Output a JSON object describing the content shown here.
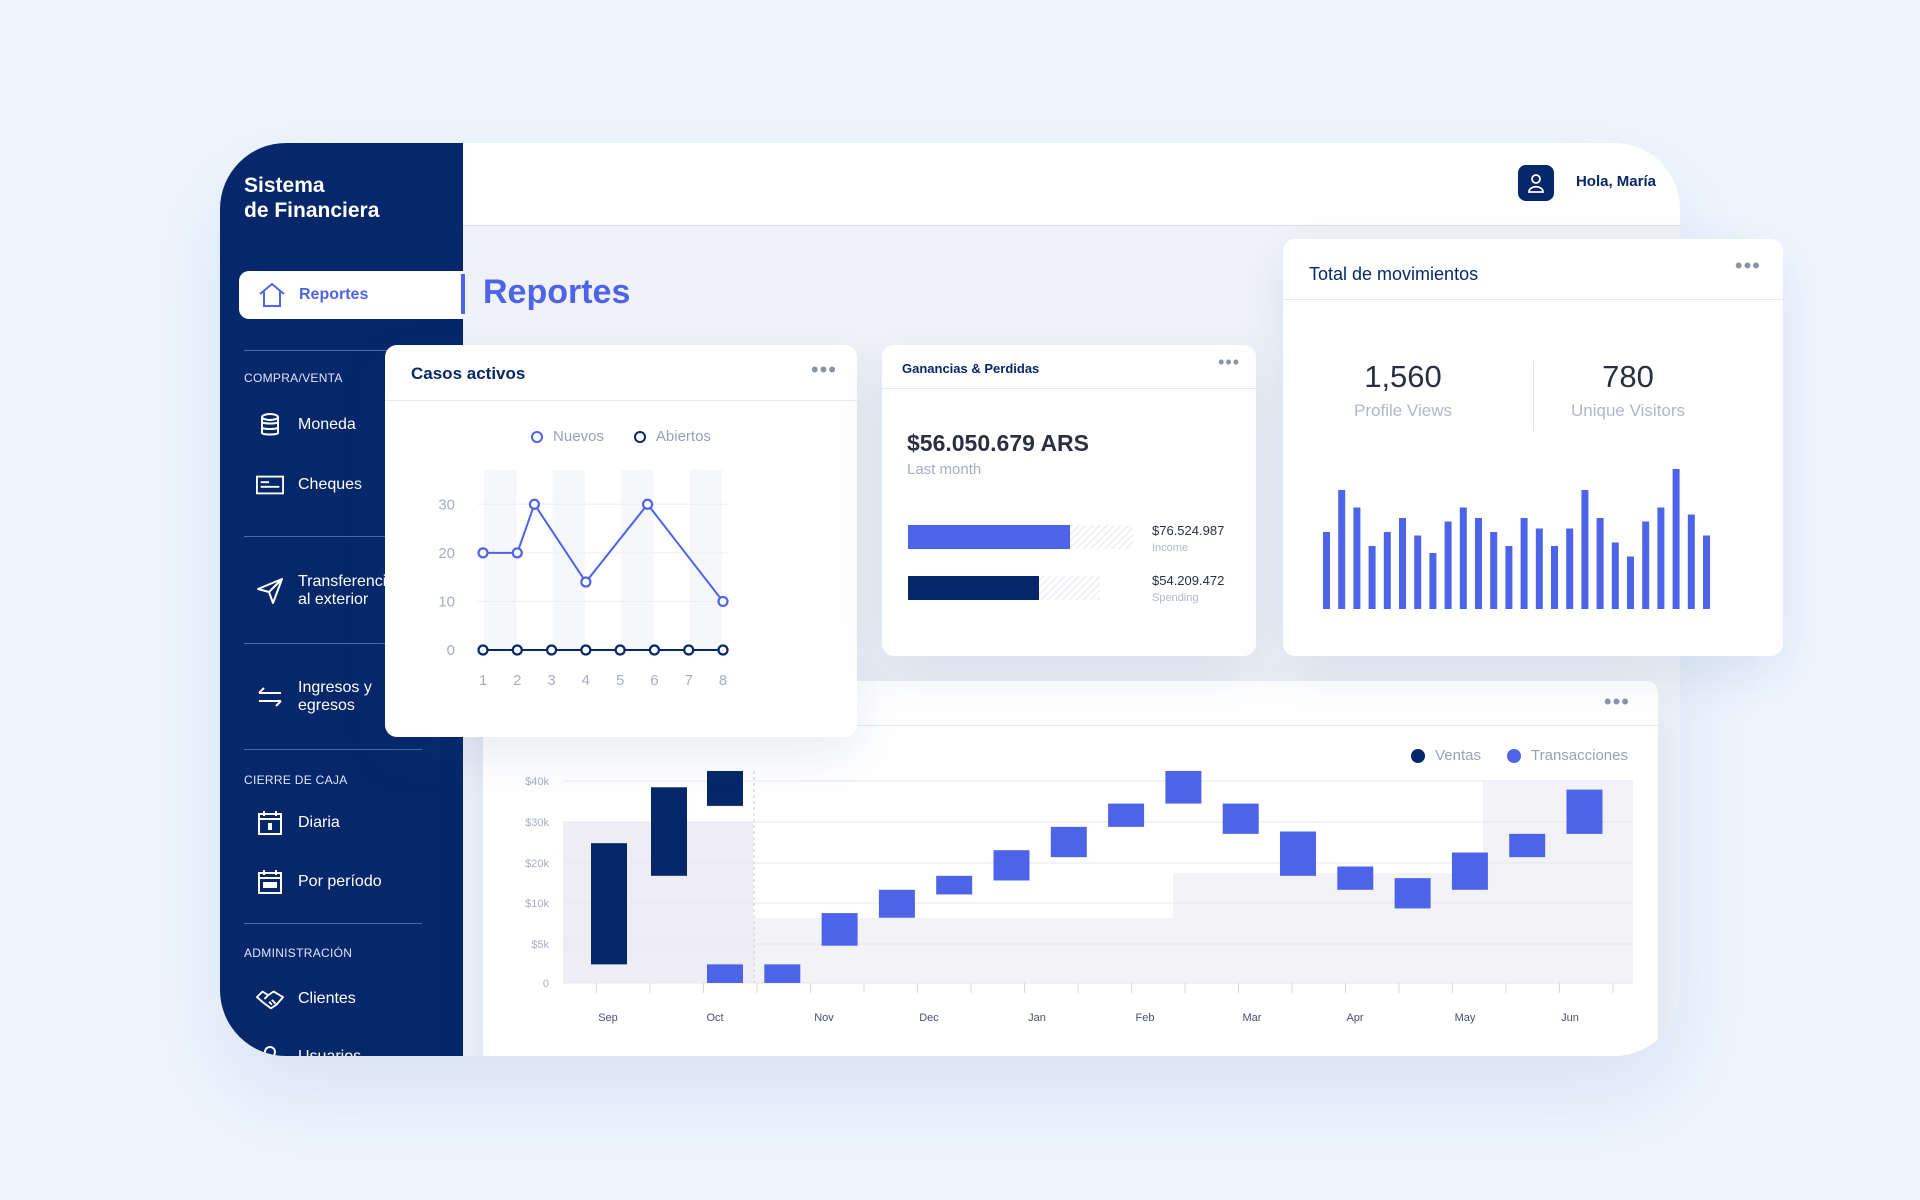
{
  "app": {
    "brand_line1": "Sistema",
    "brand_line2": "de Financiera"
  },
  "header": {
    "greeting": "Hola, María"
  },
  "page": {
    "title": "Reportes"
  },
  "sidebar": {
    "active": {
      "label": "Reportes"
    },
    "sections": [
      {
        "title": "COMPRA/VENTA",
        "items": [
          {
            "label": "Moneda"
          },
          {
            "label": "Cheques"
          }
        ]
      },
      {
        "title": "",
        "items": [
          {
            "label_line1": "Transferencias",
            "label_line2": "al exterior"
          }
        ]
      },
      {
        "title": "",
        "items": [
          {
            "label_line1": "Ingresos y",
            "label_line2": "egresos"
          }
        ]
      },
      {
        "title": "CIERRE DE CAJA",
        "items": [
          {
            "label": "Diaria"
          },
          {
            "label": "Por período"
          }
        ]
      },
      {
        "title": "ADMINISTRACIÓN",
        "items": [
          {
            "label": "Clientes"
          },
          {
            "label": "Usuarios"
          }
        ]
      }
    ]
  },
  "cards": {
    "casos": {
      "title": "Casos activos",
      "legend": [
        "Nuevos",
        "Abiertos"
      ],
      "menu": "•••"
    },
    "ganancias": {
      "title": "Ganancias & Perdidas",
      "amount": "$56.050.679 ARS",
      "period": "Last month",
      "income_value": "$76.524.987",
      "income_label": "Income",
      "income_fraction": 0.72,
      "spending_value": "$54.209.472",
      "spending_label": "Spending",
      "spending_fraction": 0.68,
      "menu": "•••"
    },
    "movimientos": {
      "title": "Total de movimientos",
      "profile_views": "1,560",
      "profile_views_label": "Profile Views",
      "unique_visitors": "780",
      "unique_visitors_label": "Unique Visitors",
      "menu": "•••"
    },
    "ventas": {
      "legend": [
        "Ventas",
        "Transacciones"
      ],
      "menu": "•••"
    }
  },
  "colors": {
    "navy": "#06286a",
    "accent": "#4e64e8",
    "bg": "#eef5fe"
  },
  "chart_data": [
    {
      "type": "line",
      "x": [
        1,
        2,
        3,
        4,
        5,
        6,
        7,
        8
      ],
      "xticks": [
        "1",
        "2",
        "3",
        "4",
        "5",
        "6",
        "7",
        "8"
      ],
      "yticks": [
        "0",
        "10",
        "20",
        "30"
      ],
      "ylim": [
        0,
        35
      ],
      "series": [
        {
          "name": "Nuevos",
          "points": [
            [
              1,
              20
            ],
            [
              2,
              20
            ],
            [
              2.5,
              30
            ],
            [
              4,
              14
            ],
            [
              5.8,
              30
            ],
            [
              8,
              10
            ]
          ]
        },
        {
          "name": "Abiertos",
          "points": [
            [
              1,
              0
            ],
            [
              2,
              0
            ],
            [
              3,
              0
            ],
            [
              4,
              0
            ],
            [
              5,
              0
            ],
            [
              6,
              0
            ],
            [
              7,
              0
            ],
            [
              8,
              0
            ]
          ]
        }
      ]
    },
    {
      "type": "bar",
      "values": [
        22,
        34,
        29,
        18,
        22,
        26,
        21,
        16,
        25,
        29,
        26,
        22,
        18,
        26,
        23,
        18,
        23,
        34,
        26,
        19,
        15,
        25,
        29,
        40,
        27,
        21
      ]
    },
    {
      "type": "bar",
      "subtype": "waterfall",
      "xticks": [
        "Sep",
        "Oct",
        "Nov",
        "Dec",
        "Jan",
        "Feb",
        "Mar",
        "Apr",
        "May",
        "Jun"
      ],
      "yticks": [
        "$40k",
        "$30k",
        "$20k",
        "$10k",
        "$5k",
        "0"
      ],
      "ylim": [
        0,
        40000
      ],
      "series": [
        {
          "name": "Ventas",
          "ranges": [
            [
              4000,
              30000
            ],
            [
              23000,
              42000
            ],
            [
              38000,
              53000
            ]
          ]
        },
        {
          "name": "Transacciones",
          "ranges": [
            [
              0,
              4000
            ],
            [
              0,
              4000
            ],
            [
              8000,
              15000
            ],
            [
              14000,
              20000
            ],
            [
              19000,
              23000
            ],
            [
              22000,
              28500
            ],
            [
              27000,
              33500
            ],
            [
              33500,
              38500
            ],
            [
              38500,
              45500
            ],
            [
              32000,
              38500
            ],
            [
              23000,
              32500
            ],
            [
              20000,
              25000
            ],
            [
              16000,
              22500
            ],
            [
              20000,
              28000
            ],
            [
              27000,
              32000
            ],
            [
              32000,
              41500
            ]
          ]
        }
      ]
    }
  ]
}
